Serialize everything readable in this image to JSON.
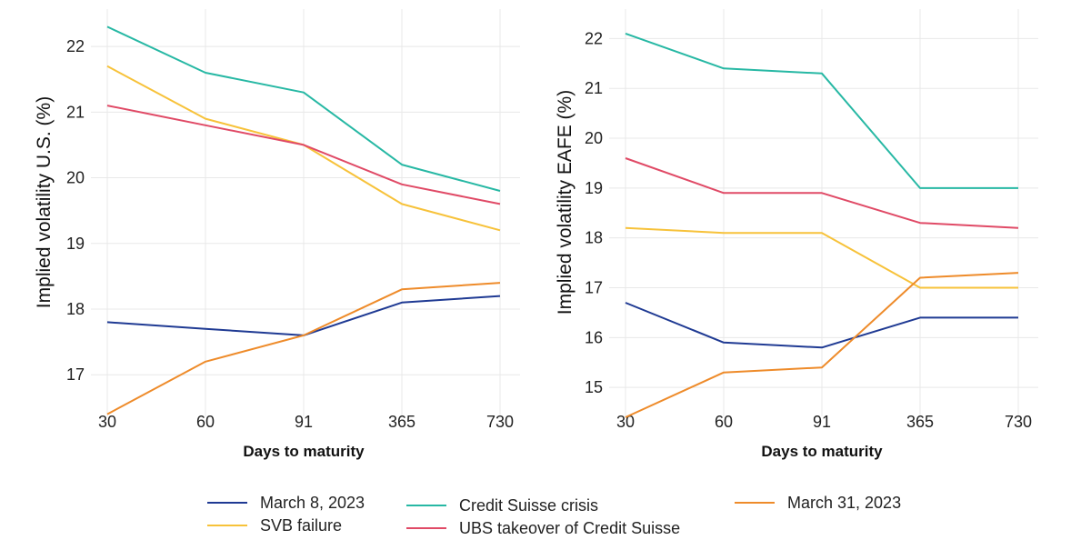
{
  "colors": {
    "march8": "#1f3a93",
    "svb": "#f7c23a",
    "cs": "#27b8a4",
    "ubs": "#e04a66",
    "march31": "#ee8b2a",
    "grid": "#e8e8e8"
  },
  "legend": [
    {
      "label": "March 8, 2023",
      "color": "#1f3a93"
    },
    {
      "label": "SVB failure",
      "color": "#f7c23a"
    },
    {
      "label": "Credit Suisse crisis",
      "color": "#27b8a4"
    },
    {
      "label": "UBS takeover of Credit Suisse",
      "color": "#e04a66"
    },
    {
      "label": "March 31, 2023",
      "color": "#ee8b2a"
    }
  ],
  "chart_data": [
    {
      "type": "line",
      "title": "",
      "xlabel": "Days to maturity",
      "ylabel": "Implied volatility U.S. (%)",
      "categories": [
        "30",
        "60",
        "91",
        "365",
        "730"
      ],
      "yticks": [
        17,
        18,
        19,
        20,
        21,
        22
      ],
      "ylim": [
        16.2,
        22.5
      ],
      "grid": true,
      "series": [
        {
          "name": "March 8, 2023",
          "color": "#1f3a93",
          "values": [
            17.8,
            17.7,
            17.6,
            18.1,
            18.2
          ]
        },
        {
          "name": "SVB failure",
          "color": "#f7c23a",
          "values": [
            21.7,
            20.9,
            20.5,
            19.6,
            19.2
          ]
        },
        {
          "name": "Credit Suisse crisis",
          "color": "#27b8a4",
          "values": [
            22.3,
            21.6,
            21.3,
            20.2,
            19.8
          ]
        },
        {
          "name": "UBS takeover of Credit Suisse",
          "color": "#e04a66",
          "values": [
            21.1,
            20.8,
            20.5,
            19.9,
            19.6
          ]
        },
        {
          "name": "March 31, 2023",
          "color": "#ee8b2a",
          "values": [
            16.4,
            17.2,
            17.6,
            18.3,
            18.4
          ]
        }
      ]
    },
    {
      "type": "line",
      "title": "",
      "xlabel": "Days to maturity",
      "ylabel": "Implied volatility EAFE (%)",
      "categories": [
        "30",
        "60",
        "91",
        "365",
        "730"
      ],
      "yticks": [
        15,
        16,
        17,
        18,
        19,
        20,
        21,
        22
      ],
      "ylim": [
        14.2,
        22.5
      ],
      "grid": true,
      "series": [
        {
          "name": "March 8, 2023",
          "color": "#1f3a93",
          "values": [
            16.7,
            15.9,
            15.8,
            16.4,
            16.4
          ]
        },
        {
          "name": "SVB failure",
          "color": "#f7c23a",
          "values": [
            18.2,
            18.1,
            18.1,
            17.0,
            17.0
          ]
        },
        {
          "name": "Credit Suisse crisis",
          "color": "#27b8a4",
          "values": [
            22.1,
            21.4,
            21.3,
            19.0,
            19.0
          ]
        },
        {
          "name": "UBS takeover of Credit Suisse",
          "color": "#e04a66",
          "values": [
            19.6,
            18.9,
            18.9,
            18.3,
            18.2
          ]
        },
        {
          "name": "March 31, 2023",
          "color": "#ee8b2a",
          "values": [
            14.4,
            15.3,
            15.4,
            17.2,
            17.3
          ]
        }
      ]
    }
  ]
}
